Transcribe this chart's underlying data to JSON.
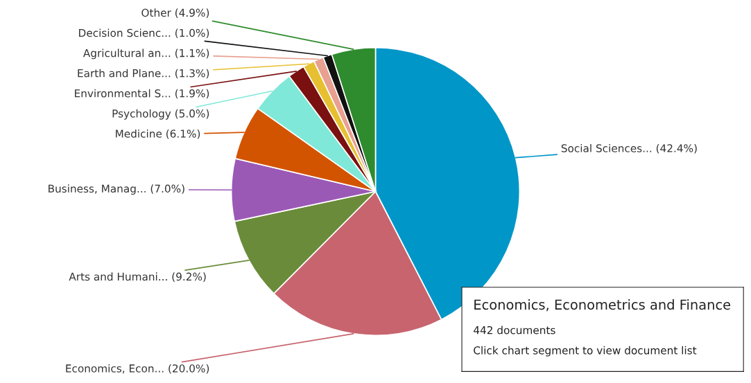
{
  "chart_data": {
    "type": "pie",
    "categories": [
      "Social Sciences...",
      "Economics, Econ...",
      "Arts and Humani...",
      "Business, Manag...",
      "Medicine",
      "Psychology",
      "Environmental S...",
      "Earth and Plane...",
      "Agricultural an...",
      "Decision Scienc...",
      "Other"
    ],
    "values": [
      42.4,
      20.0,
      9.2,
      7.0,
      6.1,
      5.0,
      1.9,
      1.3,
      1.1,
      1.0,
      4.9
    ],
    "value_labels": [
      "(42.4%)",
      "(20.0%)",
      "(9.2%)",
      "(7.0%)",
      "(6.1%)",
      "(5.0%)",
      "(1.9%)",
      "(1.3%)",
      "(1.1%)",
      "(1.0%)",
      "(4.9%)"
    ],
    "colors": [
      "#0096c8",
      "#c8646e",
      "#6a8c3a",
      "#9b59b6",
      "#d35400",
      "#80e8d8",
      "#7a1010",
      "#e6c030",
      "#e8a090",
      "#111111",
      "#2e8b2e"
    ],
    "annotations": [
      "Economics, Econometrics and Finance",
      "442 documents",
      "Click chart segment to view document list"
    ]
  }
}
